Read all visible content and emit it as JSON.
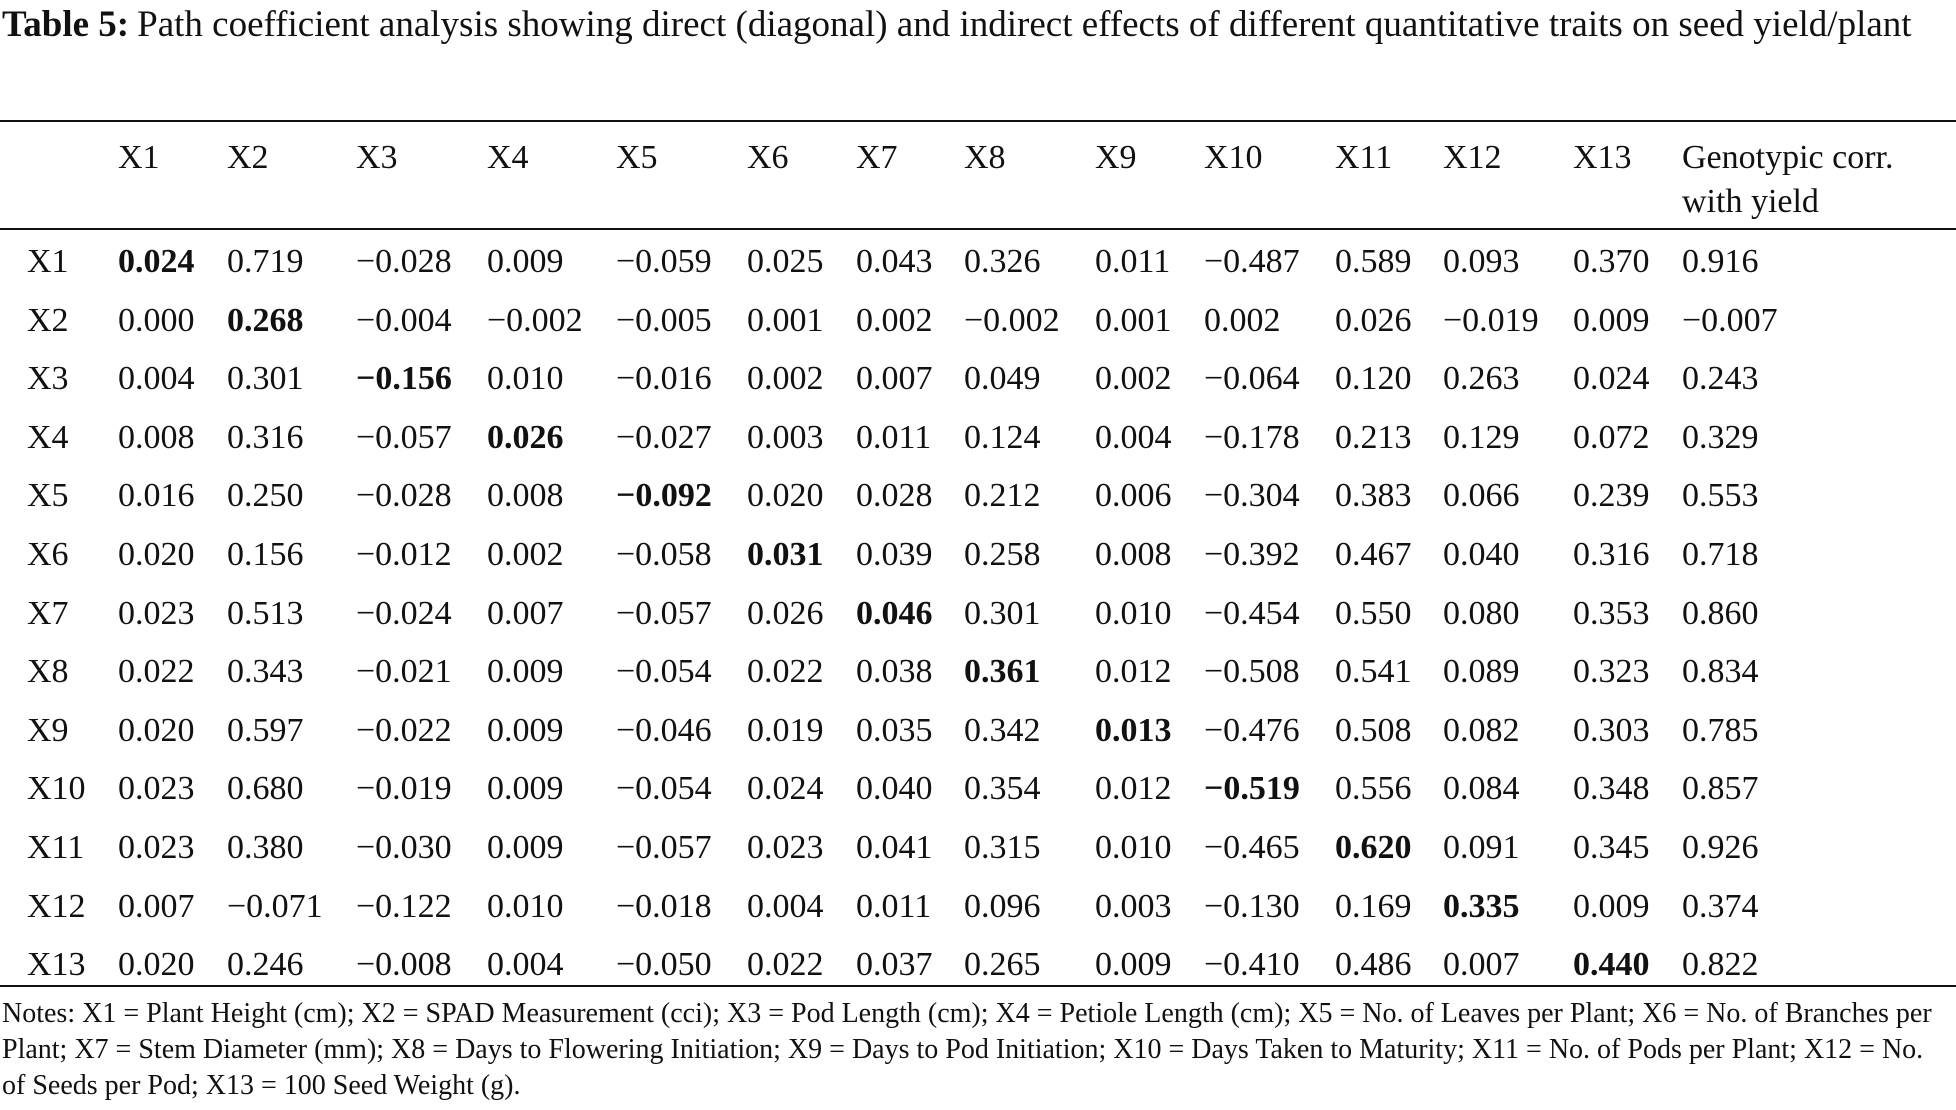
{
  "title": {
    "label": "Table 5:",
    "text": "Path coefficient analysis showing direct (diagonal) and indirect effects of different quantitative traits on seed yield/plant"
  },
  "table": {
    "header": [
      "",
      "X1",
      "X2",
      "X3",
      "X4",
      "X5",
      "X6",
      "X7",
      "X8",
      "X9",
      "X10",
      "X11",
      "X12",
      "X13",
      "Genotypic corr. with yield"
    ],
    "rows": [
      [
        "X1",
        "0.024",
        "0.719",
        "−0.028",
        "0.009",
        "−0.059",
        "0.025",
        "0.043",
        "0.326",
        "0.011",
        "−0.487",
        "0.589",
        "0.093",
        "0.370",
        "0.916"
      ],
      [
        "X2",
        "0.000",
        "0.268",
        "−0.004",
        "−0.002",
        "−0.005",
        "0.001",
        "0.002",
        "−0.002",
        "0.001",
        "0.002",
        "0.026",
        "−0.019",
        "0.009",
        "−0.007"
      ],
      [
        "X3",
        "0.004",
        "0.301",
        "−0.156",
        "0.010",
        "−0.016",
        "0.002",
        "0.007",
        "0.049",
        "0.002",
        "−0.064",
        "0.120",
        "0.263",
        "0.024",
        "0.243"
      ],
      [
        "X4",
        "0.008",
        "0.316",
        "−0.057",
        "0.026",
        "−0.027",
        "0.003",
        "0.011",
        "0.124",
        "0.004",
        "−0.178",
        "0.213",
        "0.129",
        "0.072",
        "0.329"
      ],
      [
        "X5",
        "0.016",
        "0.250",
        "−0.028",
        "0.008",
        "−0.092",
        "0.020",
        "0.028",
        "0.212",
        "0.006",
        "−0.304",
        "0.383",
        "0.066",
        "0.239",
        "0.553"
      ],
      [
        "X6",
        "0.020",
        "0.156",
        "−0.012",
        "0.002",
        "−0.058",
        "0.031",
        "0.039",
        "0.258",
        "0.008",
        "−0.392",
        "0.467",
        "0.040",
        "0.316",
        "0.718"
      ],
      [
        "X7",
        "0.023",
        "0.513",
        "−0.024",
        "0.007",
        "−0.057",
        "0.026",
        "0.046",
        "0.301",
        "0.010",
        "−0.454",
        "0.550",
        "0.080",
        "0.353",
        "0.860"
      ],
      [
        "X8",
        "0.022",
        "0.343",
        "−0.021",
        "0.009",
        "−0.054",
        "0.022",
        "0.038",
        "0.361",
        "0.012",
        "−0.508",
        "0.541",
        "0.089",
        "0.323",
        "0.834"
      ],
      [
        "X9",
        "0.020",
        "0.597",
        "−0.022",
        "0.009",
        "−0.046",
        "0.019",
        "0.035",
        "0.342",
        "0.013",
        "−0.476",
        "0.508",
        "0.082",
        "0.303",
        "0.785"
      ],
      [
        "X10",
        "0.023",
        "0.680",
        "−0.019",
        "0.009",
        "−0.054",
        "0.024",
        "0.040",
        "0.354",
        "0.012",
        "−0.519",
        "0.556",
        "0.084",
        "0.348",
        "0.857"
      ],
      [
        "X11",
        "0.023",
        "0.380",
        "−0.030",
        "0.009",
        "−0.057",
        "0.023",
        "0.041",
        "0.315",
        "0.010",
        "−0.465",
        "0.620",
        "0.091",
        "0.345",
        "0.926"
      ],
      [
        "X12",
        "0.007",
        "−0.071",
        "−0.122",
        "0.010",
        "−0.018",
        "0.004",
        "0.011",
        "0.096",
        "0.003",
        "−0.130",
        "0.169",
        "0.335",
        "0.009",
        "0.374"
      ],
      [
        "X13",
        "0.020",
        "0.246",
        "−0.008",
        "0.004",
        "−0.050",
        "0.022",
        "0.037",
        "0.265",
        "0.009",
        "−0.410",
        "0.486",
        "0.007",
        "0.440",
        "0.822"
      ]
    ]
  },
  "notes": "Notes: X1 = Plant Height (cm); X2 = SPAD Measurement (cci); X3 = Pod Length (cm); X4 = Petiole Length (cm); X5 = No. of Leaves per Plant; X6 = No. of Branches per Plant; X7 = Stem Diameter (mm); X8 = Days to Flowering Initiation; X9 = Days to Pod Initiation; X10 = Days Taken to Maturity; X11 = No. of Pods per Plant; X12 = No. of Seeds per Pod; X13 = 100 Seed Weight (g)."
}
